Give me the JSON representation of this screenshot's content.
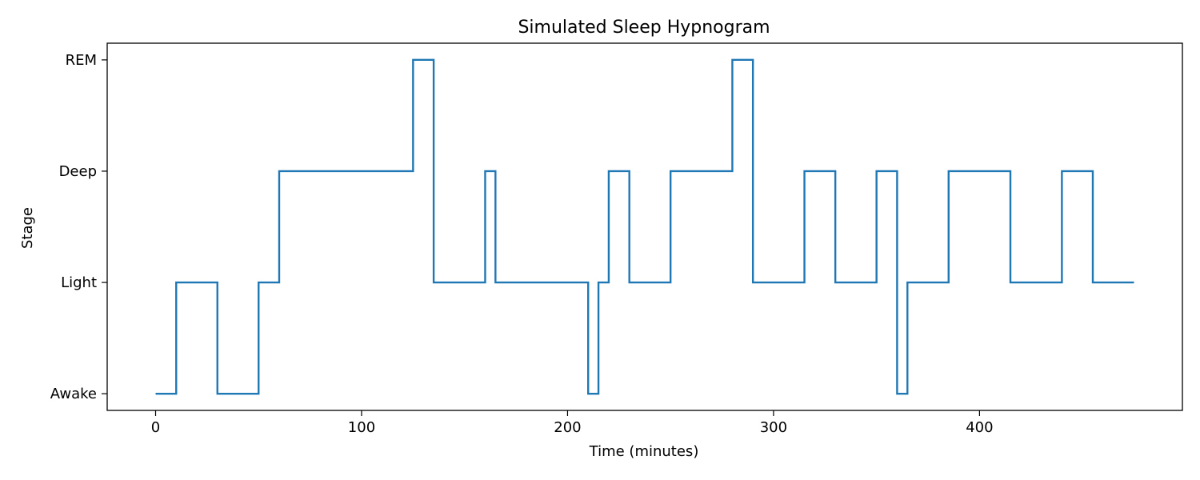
{
  "chart_data": {
    "type": "line",
    "step": "post",
    "title": "Simulated Sleep Hypnogram",
    "xlabel": "Time (minutes)",
    "ylabel": "Stage",
    "xlim": [
      -23.5,
      498.5
    ],
    "ylim": [
      -0.15,
      3.15
    ],
    "x_ticks": [
      0,
      100,
      200,
      300,
      400
    ],
    "y_ticks": [
      {
        "value": 0,
        "label": "Awake"
      },
      {
        "value": 1,
        "label": "Light"
      },
      {
        "value": 2,
        "label": "Deep"
      },
      {
        "value": 3,
        "label": "REM"
      }
    ],
    "grid": false,
    "series": [
      {
        "color": "#1f77b4",
        "x": [
          0,
          10,
          30,
          50,
          60,
          125,
          135,
          160,
          165,
          210,
          215,
          220,
          230,
          250,
          280,
          290,
          315,
          330,
          350,
          360,
          365,
          385,
          415,
          440,
          455,
          475
        ],
        "y": [
          0,
          1,
          0,
          1,
          2,
          3,
          1,
          2,
          1,
          0,
          1,
          2,
          1,
          2,
          3,
          1,
          2,
          1,
          2,
          0,
          1,
          2,
          1,
          2,
          1,
          1
        ]
      }
    ]
  }
}
